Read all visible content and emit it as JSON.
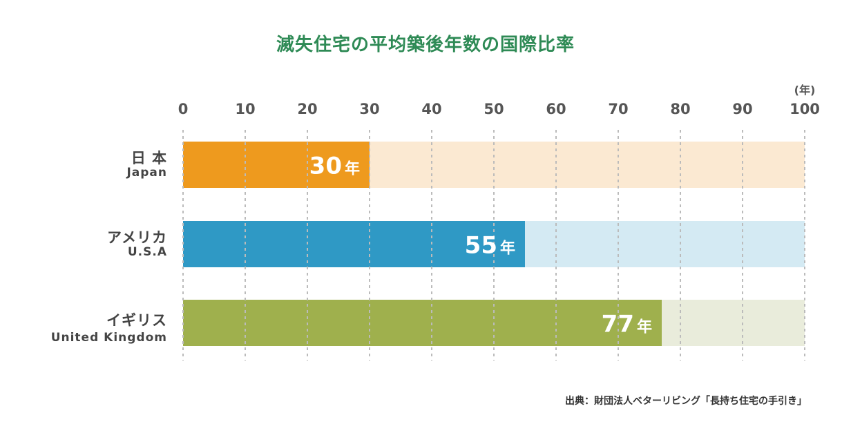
{
  "chart_data": {
    "type": "bar",
    "orientation": "horizontal",
    "title": "滅失住宅の平均築後年数の国際比率",
    "unit_label": "(年)",
    "xlim": [
      0,
      100
    ],
    "x_ticks": [
      "0",
      "10",
      "20",
      "30",
      "40",
      "50",
      "60",
      "70",
      "80",
      "90",
      "100"
    ],
    "grid": true,
    "categories": [
      {
        "name": "日 本",
        "sub": "Japan",
        "value": 30,
        "label": "30",
        "unit": "年",
        "color": "#ee9a1e",
        "bg_color": "#fbe9d2"
      },
      {
        "name": "アメリカ",
        "sub": "U.S.A",
        "value": 55,
        "label": "55",
        "unit": "年",
        "color": "#2f99c5",
        "bg_color": "#d4eaf3"
      },
      {
        "name": "イギリス",
        "sub": "United Kingdom",
        "value": 77,
        "label": "77",
        "unit": "年",
        "color": "#9fb04d",
        "bg_color": "#e9ecdb"
      }
    ]
  },
  "source": "出典：財団法人ベターリビング「長持ち住宅の手引き」"
}
